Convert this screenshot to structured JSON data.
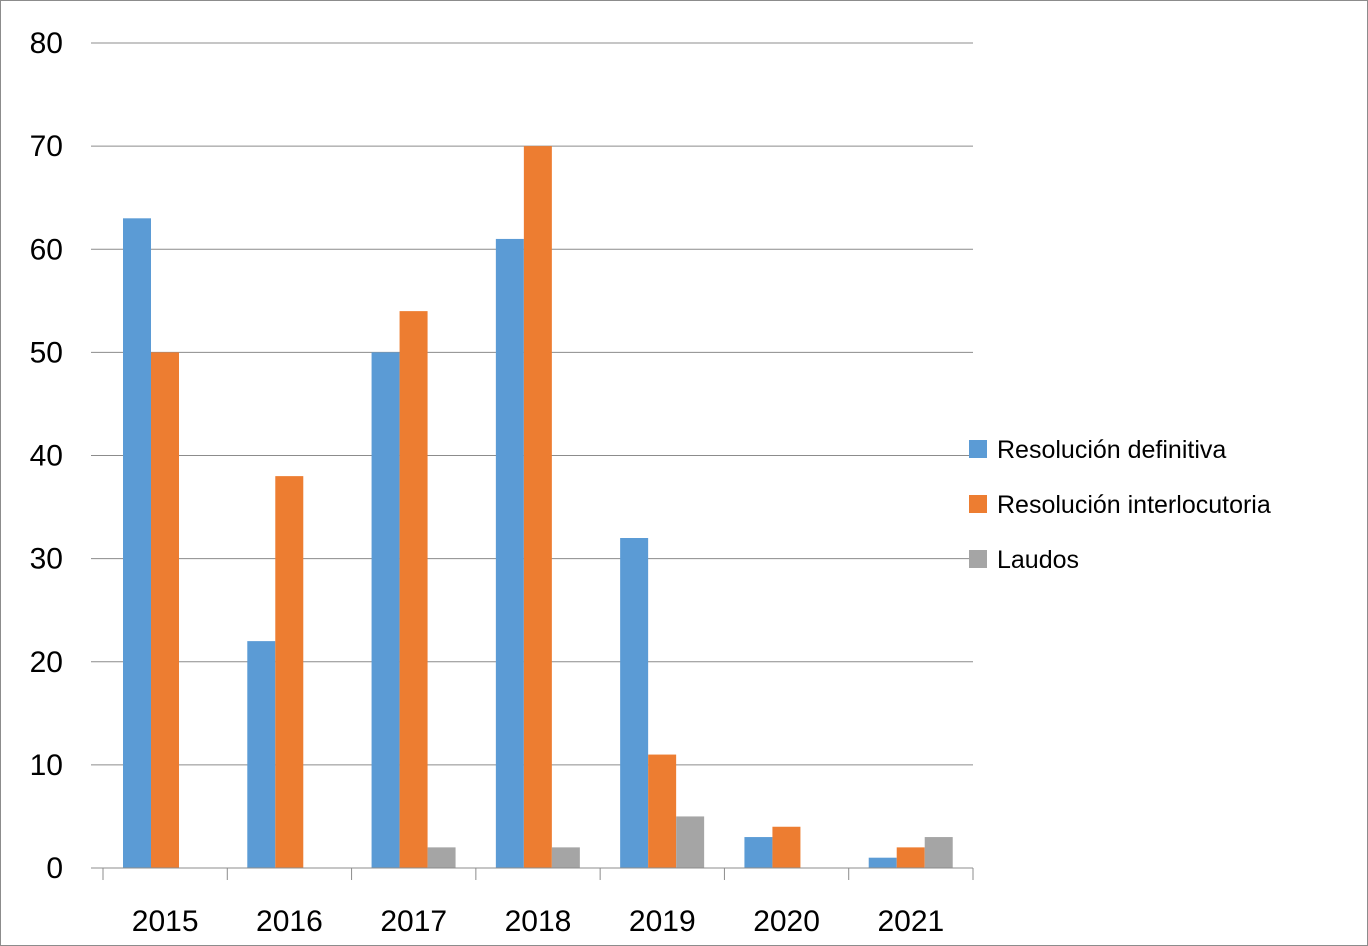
{
  "chart_data": {
    "type": "bar",
    "categories": [
      "2015",
      "2016",
      "2017",
      "2018",
      "2019",
      "2020",
      "2021"
    ],
    "series": [
      {
        "name": "Resolución definitiva",
        "color": "#5b9bd5",
        "values": [
          63,
          22,
          50,
          61,
          32,
          3,
          1
        ]
      },
      {
        "name": "Resolución interlocutoria",
        "color": "#ed7d31",
        "values": [
          50,
          38,
          54,
          70,
          11,
          4,
          2
        ]
      },
      {
        "name": "Laudos",
        "color": "#a5a5a5",
        "values": [
          0,
          0,
          2,
          2,
          5,
          0,
          3
        ]
      }
    ],
    "ylim": [
      0,
      80
    ],
    "yticks": [
      "0",
      "10",
      "20",
      "30",
      "40",
      "50",
      "60",
      "70",
      "80"
    ],
    "grid": true,
    "legend_position": "right",
    "gridline_color": "#8c8c8c"
  }
}
